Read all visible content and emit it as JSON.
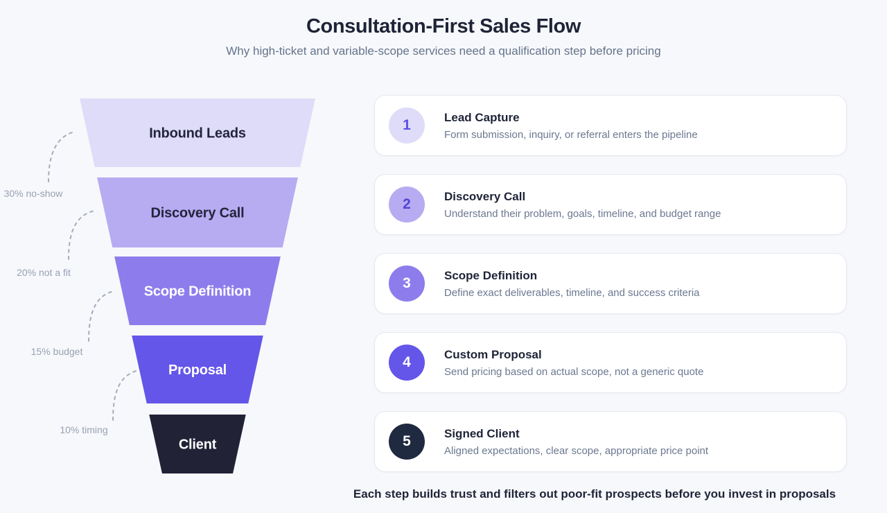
{
  "header": {
    "title": "Consultation-First Sales Flow",
    "subtitle": "Why high-ticket and variable-scope services need a qualification step before pricing"
  },
  "funnel": {
    "segments": [
      {
        "label": "Inbound Leads",
        "fill": "#DEDCF8",
        "text_color": "#23243B"
      },
      {
        "label": "Discovery Call",
        "fill": "#B7ACF2",
        "text_color": "#23243B"
      },
      {
        "label": "Scope Definition",
        "fill": "#8D7CEC",
        "text_color": "#FFFFFF"
      },
      {
        "label": "Proposal",
        "fill": "#6456E8",
        "text_color": "#FFFFFF"
      },
      {
        "label": "Client",
        "fill": "#212236",
        "text_color": "#FFFFFF"
      }
    ],
    "dropoffs": [
      {
        "label": "30% no-show"
      },
      {
        "label": "20% not a fit"
      },
      {
        "label": "15% budget"
      },
      {
        "label": "10% timing"
      }
    ],
    "dropoff_line_color": "#A3ACBB",
    "dropoff_text_color": "#97A1B3"
  },
  "steps": {
    "items": [
      {
        "number": "1",
        "title": "Lead Capture",
        "description": "Form submission, inquiry, or referral enters the pipeline",
        "badge_bg": "#DEDCF8",
        "badge_color": "#5B4FE4"
      },
      {
        "number": "2",
        "title": "Discovery Call",
        "description": "Understand their problem, goals, timeline, and budget range",
        "badge_bg": "#B7ACF2",
        "badge_color": "#5145D4"
      },
      {
        "number": "3",
        "title": "Scope Definition",
        "description": "Define exact deliverables, timeline, and success criteria",
        "badge_bg": "#8D7CEC",
        "badge_color": "#FFFFFF"
      },
      {
        "number": "4",
        "title": "Custom Proposal",
        "description": "Send pricing based on actual scope, not a generic quote",
        "badge_bg": "#6456E8",
        "badge_color": "#FFFFFF"
      },
      {
        "number": "5",
        "title": "Signed Client",
        "description": "Aligned expectations, clear scope, appropriate price point",
        "badge_bg": "#1F2940",
        "badge_color": "#FFFFFF"
      }
    ]
  },
  "footer": {
    "note": "Each step builds trust and filters out poor-fit prospects before you invest in proposals"
  },
  "colors": {
    "page_bg": "#F7F8FB",
    "card_bg": "#FFFFFF",
    "card_border": "#E4E8F0",
    "heading": "#1E2337",
    "muted": "#64748B"
  }
}
